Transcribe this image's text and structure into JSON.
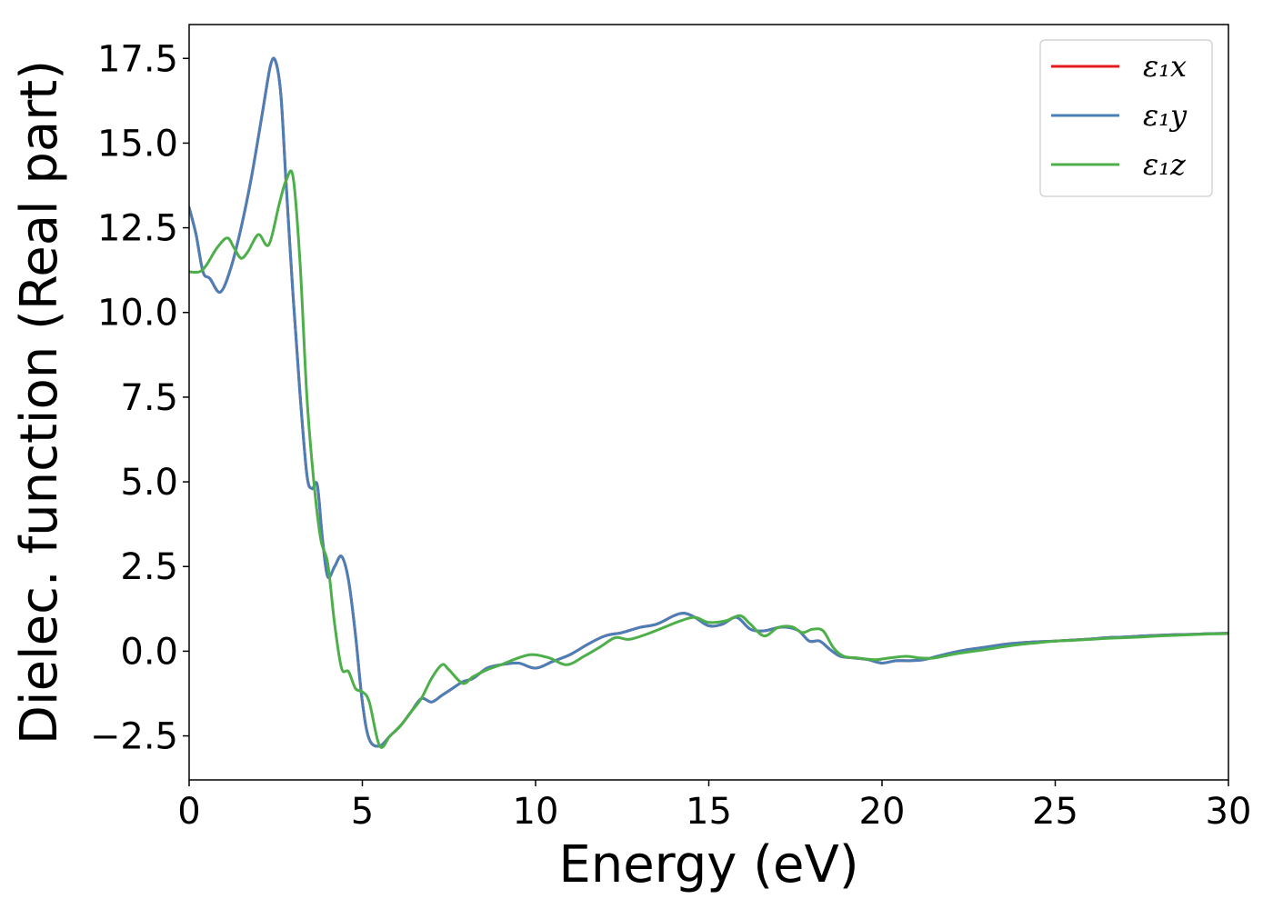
{
  "chart_data": {
    "type": "line",
    "title": "",
    "xlabel": "Energy (eV)",
    "ylabel": "Dielec. function (Real part)",
    "xlim": [
      0,
      30
    ],
    "ylim": [
      -3.8,
      18.5
    ],
    "xticks": [
      0,
      5,
      10,
      15,
      20,
      25,
      30
    ],
    "xtick_labels": [
      "0",
      "5",
      "10",
      "15",
      "20",
      "25",
      "30"
    ],
    "yticks": [
      -2.5,
      0.0,
      2.5,
      5.0,
      7.5,
      10.0,
      12.5,
      15.0,
      17.5
    ],
    "ytick_labels": [
      "−2.5",
      "0.0",
      "2.5",
      "5.0",
      "7.5",
      "10.0",
      "12.5",
      "15.0",
      "17.5"
    ],
    "grid": false,
    "legend_position": "top-right",
    "series": [
      {
        "name": "ε₁x",
        "color": "#e41a1c",
        "x": [
          0,
          0.2,
          0.4,
          0.6,
          0.9,
          1.2,
          1.5,
          1.8,
          2.1,
          2.35,
          2.5,
          2.65,
          2.8,
          3.0,
          3.2,
          3.4,
          3.55,
          3.7,
          3.85,
          4.0,
          4.2,
          4.4,
          4.6,
          4.8,
          5.0,
          5.2,
          5.5,
          5.8,
          6.1,
          6.4,
          6.7,
          7.0,
          7.3,
          7.6,
          7.9,
          8.2,
          8.6,
          9.0,
          9.5,
          10.0,
          10.5,
          11.0,
          11.5,
          12.0,
          12.5,
          13.0,
          13.5,
          14.0,
          14.3,
          14.6,
          15.0,
          15.4,
          15.8,
          16.2,
          16.6,
          17.0,
          17.3,
          17.6,
          17.9,
          18.2,
          18.5,
          18.8,
          19.2,
          19.6,
          20.0,
          20.4,
          20.8,
          21.2,
          21.6,
          22.0,
          22.5,
          23.0,
          23.5,
          24.0,
          24.5,
          25.0,
          25.5,
          26.0,
          26.5,
          27.0,
          27.5,
          28.0,
          28.5,
          29.0,
          29.5,
          30.0
        ],
        "values": [
          13.1,
          12.3,
          11.2,
          11.0,
          10.6,
          11.3,
          12.5,
          14.0,
          15.8,
          17.3,
          17.4,
          16.4,
          13.8,
          10.5,
          7.6,
          5.2,
          4.8,
          4.9,
          3.3,
          2.2,
          2.5,
          2.8,
          2.1,
          0.5,
          -1.5,
          -2.6,
          -2.8,
          -2.5,
          -2.2,
          -1.8,
          -1.4,
          -1.5,
          -1.3,
          -1.1,
          -0.9,
          -0.8,
          -0.5,
          -0.4,
          -0.35,
          -0.5,
          -0.3,
          -0.1,
          0.2,
          0.45,
          0.55,
          0.7,
          0.8,
          1.05,
          1.12,
          1.0,
          0.75,
          0.8,
          1.0,
          0.65,
          0.6,
          0.7,
          0.7,
          0.6,
          0.3,
          0.3,
          0.05,
          -0.15,
          -0.2,
          -0.25,
          -0.35,
          -0.28,
          -0.28,
          -0.25,
          -0.15,
          -0.05,
          0.05,
          0.12,
          0.2,
          0.25,
          0.28,
          0.3,
          0.33,
          0.36,
          0.4,
          0.42,
          0.45,
          0.47,
          0.49,
          0.5,
          0.52,
          0.53
        ]
      },
      {
        "name": "ε₁y",
        "color": "#4a7fb8",
        "x": [
          0,
          0.2,
          0.4,
          0.6,
          0.9,
          1.2,
          1.5,
          1.8,
          2.1,
          2.35,
          2.5,
          2.65,
          2.8,
          3.0,
          3.2,
          3.4,
          3.55,
          3.7,
          3.85,
          4.0,
          4.2,
          4.4,
          4.6,
          4.8,
          5.0,
          5.2,
          5.5,
          5.8,
          6.1,
          6.4,
          6.7,
          7.0,
          7.3,
          7.6,
          7.9,
          8.2,
          8.6,
          9.0,
          9.5,
          10.0,
          10.5,
          11.0,
          11.5,
          12.0,
          12.5,
          13.0,
          13.5,
          14.0,
          14.3,
          14.6,
          15.0,
          15.4,
          15.8,
          16.2,
          16.6,
          17.0,
          17.3,
          17.6,
          17.9,
          18.2,
          18.5,
          18.8,
          19.2,
          19.6,
          20.0,
          20.4,
          20.8,
          21.2,
          21.6,
          22.0,
          22.5,
          23.0,
          23.5,
          24.0,
          24.5,
          25.0,
          25.5,
          26.0,
          26.5,
          27.0,
          27.5,
          28.0,
          28.5,
          29.0,
          29.5,
          30.0
        ],
        "values": [
          13.1,
          12.3,
          11.2,
          11.0,
          10.6,
          11.3,
          12.5,
          14.0,
          15.8,
          17.3,
          17.4,
          16.4,
          13.8,
          10.5,
          7.6,
          5.2,
          4.8,
          4.9,
          3.3,
          2.2,
          2.5,
          2.8,
          2.1,
          0.5,
          -1.5,
          -2.6,
          -2.8,
          -2.5,
          -2.2,
          -1.8,
          -1.4,
          -1.5,
          -1.3,
          -1.1,
          -0.9,
          -0.8,
          -0.5,
          -0.4,
          -0.35,
          -0.5,
          -0.3,
          -0.1,
          0.2,
          0.45,
          0.55,
          0.7,
          0.8,
          1.05,
          1.12,
          1.0,
          0.75,
          0.8,
          1.0,
          0.65,
          0.6,
          0.7,
          0.7,
          0.6,
          0.3,
          0.3,
          0.05,
          -0.15,
          -0.2,
          -0.25,
          -0.35,
          -0.28,
          -0.28,
          -0.25,
          -0.15,
          -0.05,
          0.05,
          0.12,
          0.2,
          0.25,
          0.28,
          0.3,
          0.33,
          0.36,
          0.4,
          0.42,
          0.45,
          0.47,
          0.49,
          0.5,
          0.52,
          0.53
        ]
      },
      {
        "name": "ε₁z",
        "color": "#4daf4a",
        "x": [
          0,
          0.3,
          0.5,
          0.8,
          1.1,
          1.3,
          1.5,
          1.7,
          2.0,
          2.3,
          2.6,
          2.8,
          3.0,
          3.2,
          3.4,
          3.6,
          3.8,
          4.0,
          4.2,
          4.4,
          4.6,
          4.8,
          5.0,
          5.2,
          5.5,
          5.8,
          6.1,
          6.4,
          6.7,
          7.0,
          7.3,
          7.5,
          7.9,
          8.2,
          8.6,
          9.0,
          9.5,
          9.9,
          10.4,
          10.9,
          11.4,
          11.9,
          12.3,
          12.7,
          13.2,
          13.7,
          14.2,
          14.6,
          15.0,
          15.5,
          15.9,
          16.2,
          16.6,
          17.0,
          17.4,
          17.7,
          18.0,
          18.3,
          18.6,
          18.9,
          19.3,
          19.8,
          20.2,
          20.7,
          21.1,
          21.5,
          22.0,
          22.5,
          23.0,
          23.5,
          24.0,
          24.5,
          25.0,
          25.5,
          26.0,
          26.5,
          27.0,
          27.5,
          28.0,
          28.5,
          29.0,
          29.5,
          30.0
        ],
        "values": [
          11.2,
          11.2,
          11.4,
          11.9,
          12.2,
          11.9,
          11.6,
          11.8,
          12.3,
          12.0,
          13.2,
          13.9,
          14.0,
          11.5,
          7.5,
          5.0,
          3.3,
          2.6,
          0.8,
          -0.5,
          -0.6,
          -1.1,
          -1.2,
          -1.5,
          -2.8,
          -2.5,
          -2.2,
          -1.8,
          -1.4,
          -0.8,
          -0.4,
          -0.55,
          -0.95,
          -0.75,
          -0.55,
          -0.4,
          -0.2,
          -0.1,
          -0.2,
          -0.4,
          -0.15,
          0.15,
          0.4,
          0.35,
          0.5,
          0.7,
          0.9,
          1.0,
          0.85,
          0.9,
          1.05,
          0.8,
          0.45,
          0.7,
          0.72,
          0.55,
          0.65,
          0.6,
          0.1,
          -0.15,
          -0.2,
          -0.25,
          -0.2,
          -0.15,
          -0.2,
          -0.2,
          -0.1,
          -0.02,
          0.05,
          0.13,
          0.2,
          0.25,
          0.3,
          0.32,
          0.35,
          0.38,
          0.4,
          0.42,
          0.45,
          0.47,
          0.49,
          0.51,
          0.52
        ]
      }
    ]
  }
}
